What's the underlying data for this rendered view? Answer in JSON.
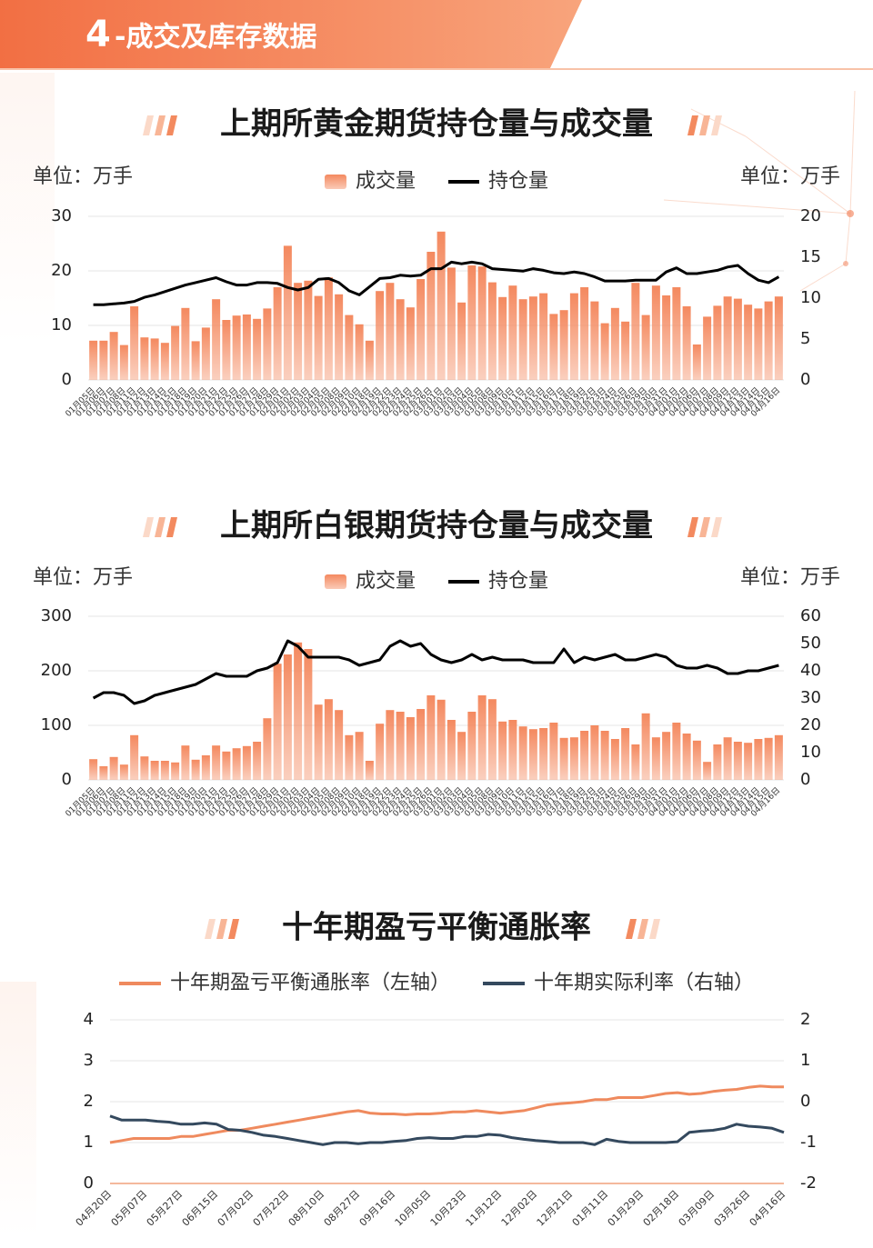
{
  "header": {
    "number": "4",
    "title": "-成交及库存数据"
  },
  "chart_data": [
    {
      "type": "bar_line",
      "title": "上期所黄金期货持仓量与成交量",
      "unit_left": "单位：万手",
      "unit_right": "单位：万手",
      "categories": [
        "01月05日",
        "01月06日",
        "01月07日",
        "01月08日",
        "01月11日",
        "01月12日",
        "01月13日",
        "01月14日",
        "01月15日",
        "01月18日",
        "01月19日",
        "01月20日",
        "01月21日",
        "01月22日",
        "01月25日",
        "01月26日",
        "01月27日",
        "01月28日",
        "01月29日",
        "02月01日",
        "02月02日",
        "02月03日",
        "02月04日",
        "02月05日",
        "02月08日",
        "02月09日",
        "02月10日",
        "02月18日",
        "02月19日",
        "02月22日",
        "02月23日",
        "02月24日",
        "02月25日",
        "02月26日",
        "03月01日",
        "03月02日",
        "03月03日",
        "03月04日",
        "03月05日",
        "03月08日",
        "03月09日",
        "03月10日",
        "03月11日",
        "03月12日",
        "03月15日",
        "03月16日",
        "03月17日",
        "03月18日",
        "03月19日",
        "03月22日",
        "03月23日",
        "03月24日",
        "03月25日",
        "03月26日",
        "03月29日",
        "03月30日",
        "03月31日",
        "04月01日",
        "04月02日",
        "04月06日",
        "04月07日",
        "04月08日",
        "04月09日",
        "04月12日",
        "04月13日",
        "04月14日",
        "04月15日",
        "04月16日"
      ],
      "series": [
        {
          "name": "成交量",
          "type": "bar",
          "axis": "y",
          "color": "#f4895f",
          "values": [
            7.2,
            7.2,
            8.8,
            6.4,
            13.5,
            7.8,
            7.6,
            6.8,
            9.9,
            13.2,
            7.1,
            9.6,
            14.8,
            11.0,
            11.8,
            12.0,
            11.2,
            13.1,
            17.0,
            24.6,
            17.8,
            18.2,
            15.4,
            18.8,
            15.7,
            11.9,
            10.2,
            7.2,
            16.3,
            17.8,
            14.8,
            13.3,
            18.5,
            23.5,
            27.2,
            20.6,
            14.2,
            21.0,
            20.8,
            17.9,
            15.2,
            17.3,
            14.8,
            15.3,
            15.9,
            12.1,
            12.8,
            15.9,
            17.0,
            14.4,
            10.4,
            13.2,
            10.7,
            17.8,
            11.9,
            17.3,
            15.5,
            17.0,
            13.5,
            6.5,
            11.6,
            13.6,
            15.3,
            14.9,
            13.8,
            13.1,
            14.4,
            15.3
          ]
        },
        {
          "name": "持仓量",
          "type": "line",
          "axis": "y2",
          "color": "#000000",
          "values": [
            9.2,
            9.2,
            9.3,
            9.4,
            9.6,
            10.1,
            10.4,
            10.8,
            11.2,
            11.6,
            11.9,
            12.2,
            12.5,
            12.0,
            11.6,
            11.6,
            11.9,
            11.9,
            11.8,
            11.3,
            11.0,
            11.3,
            12.3,
            12.4,
            11.9,
            10.9,
            10.4,
            11.4,
            12.4,
            12.5,
            12.8,
            12.7,
            12.8,
            13.6,
            13.6,
            14.4,
            14.2,
            14.4,
            14.2,
            13.6,
            13.5,
            13.4,
            13.3,
            13.6,
            13.4,
            13.1,
            13.0,
            13.2,
            13.0,
            12.6,
            12.1,
            12.1,
            12.1,
            12.2,
            12.2,
            12.2,
            13.2,
            13.7,
            13.0,
            13.0,
            13.2,
            13.4,
            13.8,
            14.0,
            13.0,
            12.2,
            11.9,
            12.6
          ]
        }
      ],
      "ylim": [
        0,
        30
      ],
      "yticks": [
        0,
        10,
        20,
        30
      ],
      "y2lim": [
        0,
        20
      ],
      "y2ticks": [
        0,
        5,
        10,
        15,
        20
      ],
      "grid": true
    },
    {
      "type": "bar_line",
      "title": "上期所白银期货持仓量与成交量",
      "unit_left": "单位：万手",
      "unit_right": "单位：万手",
      "categories": [
        "01月05日",
        "01月06日",
        "01月07日",
        "01月08日",
        "01月11日",
        "01月12日",
        "01月13日",
        "01月14日",
        "01月15日",
        "01月18日",
        "01月19日",
        "01月20日",
        "01月21日",
        "01月22日",
        "01月25日",
        "01月26日",
        "01月27日",
        "01月28日",
        "01月29日",
        "02月01日",
        "02月02日",
        "02月03日",
        "02月04日",
        "02月05日",
        "02月08日",
        "02月09日",
        "02月10日",
        "02月18日",
        "02月19日",
        "02月22日",
        "02月23日",
        "02月24日",
        "02月25日",
        "02月26日",
        "03月01日",
        "03月02日",
        "03月03日",
        "03月04日",
        "03月05日",
        "03月08日",
        "03月09日",
        "03月10日",
        "03月11日",
        "03月12日",
        "03月15日",
        "03月16日",
        "03月17日",
        "03月18日",
        "03月19日",
        "03月22日",
        "03月23日",
        "03月24日",
        "03月25日",
        "03月26日",
        "03月29日",
        "03月30日",
        "03月31日",
        "04月01日",
        "04月02日",
        "04月06日",
        "04月07日",
        "04月08日",
        "04月09日",
        "04月12日",
        "04月13日",
        "04月14日",
        "04月15日",
        "04月16日"
      ],
      "series": [
        {
          "name": "成交量",
          "type": "bar",
          "axis": "y",
          "color": "#f4895f",
          "values": [
            38,
            25,
            42,
            28,
            82,
            43,
            35,
            35,
            32,
            63,
            37,
            45,
            63,
            52,
            58,
            62,
            70,
            113,
            213,
            230,
            252,
            240,
            138,
            148,
            128,
            82,
            88,
            35,
            103,
            128,
            125,
            115,
            130,
            155,
            147,
            110,
            88,
            125,
            155,
            148,
            107,
            110,
            98,
            93,
            95,
            105,
            77,
            78,
            90,
            100,
            90,
            75,
            95,
            65,
            122,
            78,
            88,
            105,
            85,
            72,
            33,
            65,
            78,
            70,
            68,
            75,
            77,
            82
          ]
        },
        {
          "name": "持仓量",
          "type": "line",
          "axis": "y2",
          "color": "#000000",
          "values": [
            30,
            32,
            32,
            31,
            28,
            29,
            31,
            32,
            33,
            34,
            35,
            37,
            39,
            38,
            38,
            38,
            40,
            41,
            43,
            51,
            49,
            45,
            45,
            45,
            45,
            44,
            42,
            43,
            44,
            49,
            51,
            49,
            50,
            46,
            44,
            43,
            44,
            46,
            44,
            45,
            44,
            44,
            44,
            43,
            43,
            43,
            48,
            43,
            45,
            44,
            45,
            46,
            44,
            44,
            45,
            46,
            45,
            42,
            41,
            41,
            42,
            41,
            39,
            39,
            40,
            40,
            41,
            42
          ]
        }
      ],
      "ylim": [
        0,
        300
      ],
      "yticks": [
        0,
        100,
        200,
        300
      ],
      "y2lim": [
        0,
        60
      ],
      "y2ticks": [
        0,
        10,
        20,
        30,
        40,
        50,
        60
      ],
      "grid": true
    },
    {
      "type": "line",
      "title": "十年期盈亏平衡通胀率",
      "categories": [
        "04月20日",
        null,
        null,
        "05月07日",
        null,
        null,
        "05月27日",
        null,
        null,
        "06月15日",
        null,
        null,
        "07月02日",
        null,
        null,
        "07月22日",
        null,
        null,
        "08月10日",
        null,
        null,
        "08月27日",
        null,
        null,
        "09月16日",
        null,
        null,
        "10月05日",
        null,
        null,
        "10月23日",
        null,
        null,
        "11月12日",
        null,
        null,
        "12月02日",
        null,
        null,
        "12月21日",
        null,
        null,
        "01月11日",
        null,
        null,
        "01月29日",
        null,
        null,
        "02月18日",
        null,
        null,
        "03月09日",
        null,
        null,
        "03月26日",
        null,
        null,
        "04月16日"
      ],
      "series": [
        {
          "name": "十年期盈亏平衡通胀率（左轴）",
          "type": "line",
          "axis": "y",
          "color": "#ef8a5e",
          "values": [
            1.0,
            1.05,
            1.1,
            1.1,
            1.1,
            1.1,
            1.15,
            1.15,
            1.2,
            1.25,
            1.3,
            1.3,
            1.35,
            1.4,
            1.45,
            1.5,
            1.55,
            1.6,
            1.65,
            1.7,
            1.75,
            1.78,
            1.72,
            1.7,
            1.7,
            1.68,
            1.7,
            1.7,
            1.72,
            1.75,
            1.75,
            1.78,
            1.75,
            1.72,
            1.75,
            1.78,
            1.85,
            1.92,
            1.95,
            1.97,
            2.0,
            2.05,
            2.05,
            2.1,
            2.1,
            2.1,
            2.15,
            2.2,
            2.22,
            2.18,
            2.2,
            2.25,
            2.28,
            2.3,
            2.35,
            2.38,
            2.36,
            2.36
          ]
        },
        {
          "name": "十年期实际利率（右轴）",
          "type": "line",
          "axis": "y2",
          "color": "#34495e",
          "values": [
            -0.35,
            -0.45,
            -0.45,
            -0.45,
            -0.48,
            -0.5,
            -0.55,
            -0.55,
            -0.52,
            -0.55,
            -0.68,
            -0.7,
            -0.75,
            -0.82,
            -0.85,
            -0.9,
            -0.95,
            -1.0,
            -1.05,
            -1.0,
            -1.0,
            -1.03,
            -1.0,
            -1.0,
            -0.97,
            -0.95,
            -0.9,
            -0.88,
            -0.9,
            -0.9,
            -0.85,
            -0.85,
            -0.8,
            -0.82,
            -0.88,
            -0.92,
            -0.95,
            -0.97,
            -1.0,
            -1.0,
            -1.0,
            -1.05,
            -0.92,
            -0.97,
            -1.0,
            -1.0,
            -1.0,
            -1.0,
            -0.98,
            -0.75,
            -0.72,
            -0.7,
            -0.65,
            -0.55,
            -0.6,
            -0.62,
            -0.65,
            -0.75
          ]
        }
      ],
      "ylim": [
        0,
        4
      ],
      "yticks": [
        0,
        1,
        2,
        3,
        4
      ],
      "y2lim": [
        -2,
        2
      ],
      "y2ticks": [
        -2,
        -1,
        0,
        1,
        2
      ],
      "grid": true
    }
  ]
}
